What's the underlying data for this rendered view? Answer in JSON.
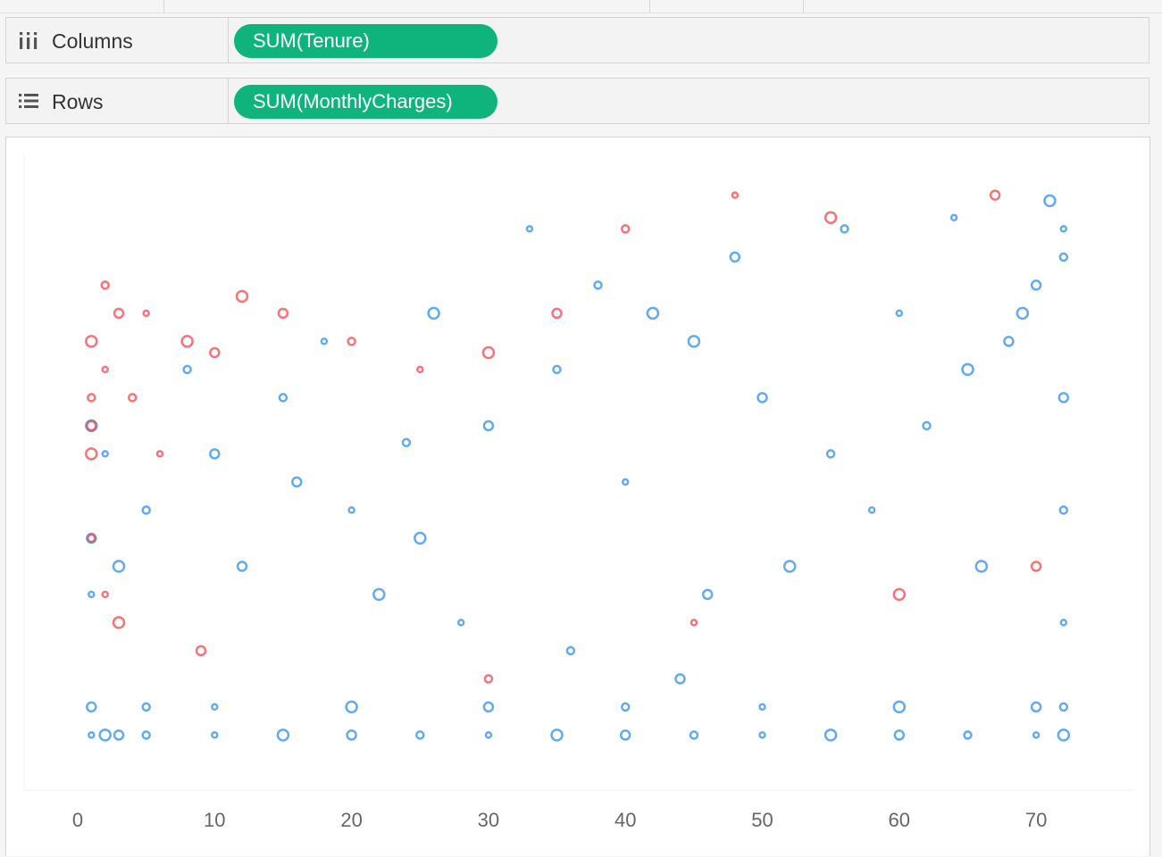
{
  "shelves": {
    "columns": {
      "label": "Columns",
      "icon": "columns-icon",
      "pill": "SUM(Tenure)"
    },
    "rows": {
      "label": "Rows",
      "icon": "rows-icon",
      "pill": "SUM(MonthlyCharges)"
    }
  },
  "colors": {
    "pill": "#0fb37c",
    "churn_no": "#2f8fe6",
    "churn_yes": "#f0454c"
  },
  "chart_data": {
    "type": "scatter",
    "mark": "circle",
    "title": "",
    "xlabel": "",
    "ylabel": "",
    "xlim": [
      0,
      72
    ],
    "ylim": [
      18,
      119
    ],
    "x_ticks": [
      0,
      10,
      20,
      30,
      40,
      50,
      60,
      70
    ],
    "y_ticks_visible": false,
    "grid": false,
    "series": [
      {
        "color": "#2f8fe6",
        "points": [
          [
            1,
            20
          ],
          [
            2,
            20
          ],
          [
            3,
            20
          ],
          [
            5,
            20
          ],
          [
            10,
            20
          ],
          [
            15,
            20
          ],
          [
            20,
            20
          ],
          [
            25,
            20
          ],
          [
            30,
            20
          ],
          [
            35,
            20
          ],
          [
            40,
            20
          ],
          [
            45,
            20
          ],
          [
            50,
            20
          ],
          [
            55,
            20
          ],
          [
            60,
            20
          ],
          [
            65,
            20
          ],
          [
            70,
            20
          ],
          [
            72,
            20
          ],
          [
            1,
            25
          ],
          [
            5,
            25
          ],
          [
            10,
            25
          ],
          [
            20,
            25
          ],
          [
            30,
            25
          ],
          [
            40,
            25
          ],
          [
            50,
            25
          ],
          [
            60,
            25
          ],
          [
            70,
            25
          ],
          [
            72,
            25
          ],
          [
            1,
            45
          ],
          [
            3,
            50
          ],
          [
            1,
            55
          ],
          [
            5,
            60
          ],
          [
            2,
            70
          ],
          [
            1,
            75
          ],
          [
            10,
            70
          ],
          [
            15,
            80
          ],
          [
            20,
            60
          ],
          [
            25,
            55
          ],
          [
            30,
            75
          ],
          [
            35,
            85
          ],
          [
            40,
            65
          ],
          [
            45,
            90
          ],
          [
            50,
            80
          ],
          [
            55,
            70
          ],
          [
            60,
            95
          ],
          [
            65,
            85
          ],
          [
            70,
            100
          ],
          [
            72,
            105
          ],
          [
            72,
            110
          ],
          [
            71,
            115
          ],
          [
            68,
            90
          ],
          [
            62,
            75
          ],
          [
            58,
            60
          ],
          [
            52,
            50
          ],
          [
            46,
            45
          ],
          [
            38,
            100
          ],
          [
            33,
            110
          ],
          [
            42,
            95
          ],
          [
            48,
            105
          ],
          [
            56,
            110
          ],
          [
            64,
            112
          ],
          [
            69,
            95
          ],
          [
            72,
            80
          ],
          [
            72,
            60
          ],
          [
            72,
            40
          ],
          [
            66,
            50
          ],
          [
            44,
            30
          ],
          [
            36,
            35
          ],
          [
            28,
            40
          ],
          [
            22,
            45
          ],
          [
            12,
            50
          ],
          [
            8,
            85
          ],
          [
            18,
            90
          ],
          [
            26,
            95
          ],
          [
            16,
            65
          ],
          [
            24,
            72
          ]
        ]
      },
      {
        "color": "#f0454c",
        "points": [
          [
            1,
            70
          ],
          [
            1,
            75
          ],
          [
            1,
            80
          ],
          [
            2,
            85
          ],
          [
            1,
            90
          ],
          [
            3,
            95
          ],
          [
            2,
            100
          ],
          [
            5,
            95
          ],
          [
            8,
            90
          ],
          [
            10,
            88
          ],
          [
            4,
            80
          ],
          [
            6,
            70
          ],
          [
            12,
            98
          ],
          [
            15,
            95
          ],
          [
            20,
            90
          ],
          [
            25,
            85
          ],
          [
            30,
            88
          ],
          [
            35,
            95
          ],
          [
            40,
            110
          ],
          [
            48,
            116
          ],
          [
            55,
            112
          ],
          [
            67,
            116
          ],
          [
            1,
            55
          ],
          [
            2,
            45
          ],
          [
            3,
            40
          ],
          [
            9,
            35
          ],
          [
            30,
            30
          ],
          [
            45,
            40
          ],
          [
            60,
            45
          ],
          [
            70,
            50
          ]
        ]
      }
    ]
  }
}
